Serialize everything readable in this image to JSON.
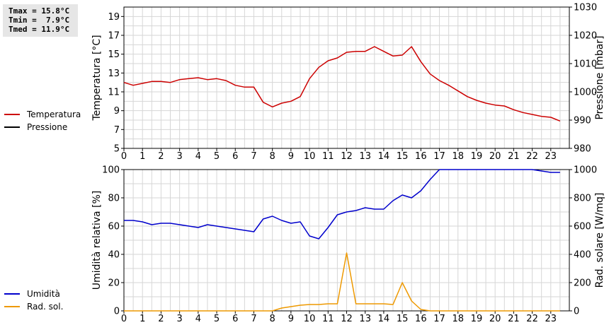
{
  "stats": {
    "tmax": "Tmax = 15.8°C",
    "tmin": "Tmin =  7.9°C",
    "tmed": "Tmed = 11.9°C"
  },
  "chart_data": [
    {
      "type": "line",
      "y_left_label": "Temperatura [°C]",
      "y_right_label": "Pressione [mbar]",
      "xlim": [
        0,
        24
      ],
      "x_ticks": [
        0,
        1,
        2,
        3,
        4,
        5,
        6,
        7,
        8,
        9,
        10,
        11,
        12,
        13,
        14,
        15,
        16,
        17,
        18,
        19,
        20,
        21,
        22,
        23
      ],
      "ylim_left": [
        5,
        20
      ],
      "y_left_ticks": [
        5,
        7,
        9,
        11,
        13,
        15,
        17,
        19
      ],
      "ylim_right": [
        980,
        1030
      ],
      "y_right_ticks": [
        980,
        990,
        1000,
        1010,
        1020,
        1030
      ],
      "grid": true,
      "legend_position": "left",
      "series": [
        {
          "name": "Temperatura",
          "axis": "left",
          "color": "#cc0000",
          "x": [
            0,
            0.5,
            1,
            1.5,
            2,
            2.5,
            3,
            3.5,
            4,
            4.5,
            5,
            5.5,
            6,
            6.5,
            7,
            7.5,
            8,
            8.5,
            9,
            9.5,
            10,
            10.5,
            11,
            11.5,
            12,
            12.5,
            13,
            13.5,
            14,
            14.5,
            15,
            15.5,
            16,
            16.5,
            17,
            17.5,
            18,
            18.5,
            19,
            19.5,
            20,
            20.5,
            21,
            21.5,
            22,
            22.5,
            23,
            23.5
          ],
          "values": [
            12.0,
            11.7,
            11.9,
            12.1,
            12.1,
            12.0,
            12.3,
            12.4,
            12.5,
            12.3,
            12.4,
            12.2,
            11.7,
            11.5,
            11.5,
            9.9,
            9.4,
            9.8,
            10.0,
            10.5,
            12.4,
            13.6,
            14.3,
            14.6,
            15.2,
            15.3,
            15.3,
            15.8,
            15.3,
            14.8,
            14.9,
            15.8,
            14.2,
            12.9,
            12.2,
            11.7,
            11.1,
            10.5,
            10.1,
            9.8,
            9.6,
            9.5,
            9.1,
            8.8,
            8.6,
            8.4,
            8.3,
            7.9
          ]
        },
        {
          "name": "Pressione",
          "axis": "right",
          "color": "#000000",
          "x": [],
          "values": []
        }
      ]
    },
    {
      "type": "line",
      "y_left_label": "Umidità relativa [%]",
      "y_right_label": "Rad. solare [W/mq]",
      "xlim": [
        0,
        24
      ],
      "x_ticks": [
        0,
        1,
        2,
        3,
        4,
        5,
        6,
        7,
        8,
        9,
        10,
        11,
        12,
        13,
        14,
        15,
        16,
        17,
        18,
        19,
        20,
        21,
        22,
        23
      ],
      "ylim_left": [
        0,
        100
      ],
      "y_left_ticks": [
        0,
        20,
        40,
        60,
        80,
        100
      ],
      "ylim_right": [
        0,
        1000
      ],
      "y_right_ticks": [
        0,
        200,
        400,
        600,
        800,
        1000
      ],
      "grid": true,
      "legend_position": "left",
      "series": [
        {
          "name": "Umidità",
          "axis": "left",
          "color": "#0000cc",
          "x": [
            0,
            0.5,
            1,
            1.5,
            2,
            2.5,
            3,
            3.5,
            4,
            4.5,
            5,
            5.5,
            6,
            6.5,
            7,
            7.5,
            8,
            8.5,
            9,
            9.5,
            10,
            10.5,
            11,
            11.5,
            12,
            12.5,
            13,
            13.5,
            14,
            14.5,
            15,
            15.5,
            16,
            16.5,
            17,
            17.5,
            18,
            18.5,
            19,
            19.5,
            20,
            20.5,
            21,
            21.5,
            22,
            22.5,
            23,
            23.5
          ],
          "values": [
            64,
            64,
            63,
            61,
            62,
            62,
            61,
            60,
            59,
            61,
            60,
            59,
            58,
            57,
            56,
            65,
            67,
            64,
            62,
            63,
            53,
            51,
            59,
            68,
            70,
            71,
            73,
            72,
            72,
            78,
            82,
            80,
            85,
            93,
            100,
            100,
            100,
            100,
            100,
            100,
            100,
            100,
            100,
            100,
            100,
            99,
            98,
            98
          ]
        },
        {
          "name": "Rad. sol.",
          "axis": "right",
          "color": "#ee9900",
          "x": [
            0,
            0.5,
            1,
            1.5,
            2,
            2.5,
            3,
            3.5,
            4,
            4.5,
            5,
            5.5,
            6,
            6.5,
            7,
            7.5,
            8,
            8.5,
            9,
            9.5,
            10,
            10.5,
            11,
            11.5,
            12,
            12.5,
            13,
            13.5,
            14,
            14.5,
            15,
            15.5,
            16,
            16.5,
            17,
            17.5,
            18,
            18.5,
            19,
            19.5,
            20,
            20.5,
            21,
            21.5,
            22,
            22.5,
            23,
            23.5
          ],
          "values": [
            0,
            0,
            0,
            0,
            0,
            0,
            0,
            0,
            0,
            0,
            0,
            0,
            0,
            0,
            0,
            0,
            0,
            20,
            30,
            40,
            45,
            45,
            50,
            50,
            410,
            50,
            50,
            50,
            50,
            45,
            200,
            70,
            10,
            0,
            0,
            0,
            0,
            0,
            0,
            0,
            0,
            0,
            0,
            0,
            0,
            0,
            0,
            0
          ]
        }
      ]
    }
  ]
}
